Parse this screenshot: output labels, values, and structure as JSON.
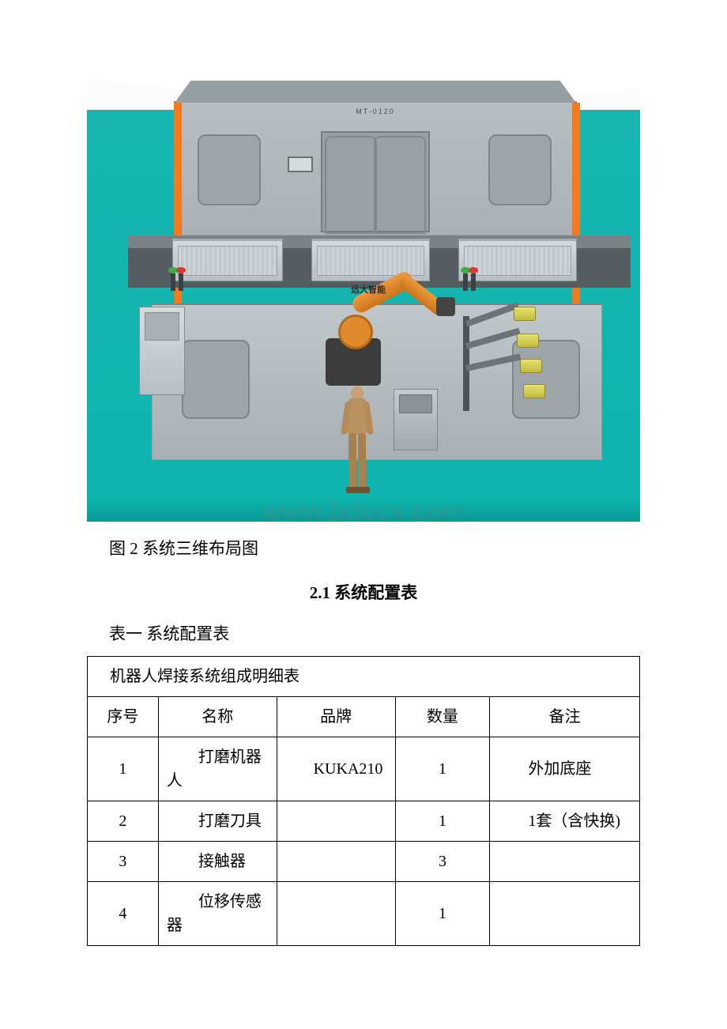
{
  "figure": {
    "caption": "图 2 系统三维布局图",
    "watermark": "www.bdocx.com",
    "logo_text": "远大智能",
    "back_sign": "MT-0120",
    "colors": {
      "floor": "#18b5b0",
      "building": "#aab1b5",
      "robot_arm": "#e08a2e",
      "tool": "#e6e272",
      "pillar": "#f47a1f",
      "human_skin": "#c9a178"
    }
  },
  "section": {
    "heading": "2.1 系统配置表",
    "table_label": "表一 系统配置表"
  },
  "table": {
    "title": "机器人焊接系统组成明细表",
    "headers": {
      "idx": "序号",
      "name": "名称",
      "brand": "品牌",
      "qty": "数量",
      "note": "备注"
    },
    "rows": [
      {
        "idx": "1",
        "name": "打磨机器人",
        "brand": "KUKA210",
        "qty": "1",
        "note": "外加底座"
      },
      {
        "idx": "2",
        "name": "打磨刀具",
        "brand": "",
        "qty": "1",
        "note": "1套（含快换)"
      },
      {
        "idx": "3",
        "name": "接触器",
        "brand": "",
        "qty": "3",
        "note": ""
      },
      {
        "idx": "4",
        "name": "位移传感器",
        "brand": "",
        "qty": "1",
        "note": ""
      }
    ]
  }
}
